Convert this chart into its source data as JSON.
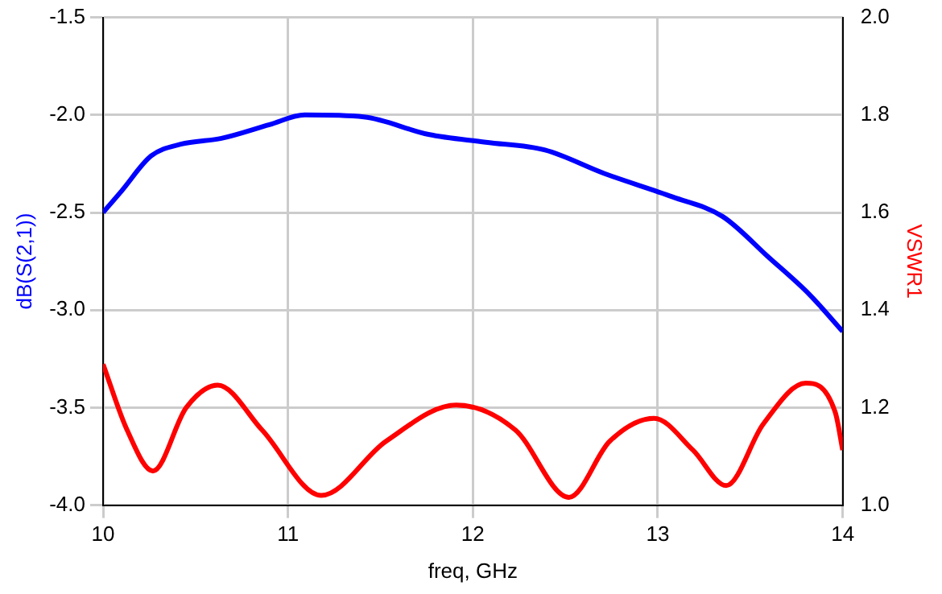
{
  "chart_data": {
    "type": "line",
    "xlabel": "freq, GHz",
    "ylabel": "dB(S(2,1))",
    "y2label": "VSWR1",
    "xlim": [
      10,
      14
    ],
    "xticks": [
      10,
      11,
      12,
      13,
      14
    ],
    "ylim": [
      -4,
      -1.5
    ],
    "yticks": [
      {
        "value": -4,
        "label": "-4.0"
      },
      {
        "value": -3.5,
        "label": "-3.5"
      },
      {
        "value": -3,
        "label": "-3.0"
      },
      {
        "value": -2.5,
        "label": "-2.5"
      },
      {
        "value": -2,
        "label": "-2.0"
      },
      {
        "value": -1.5,
        "label": "-1.5"
      }
    ],
    "y2lim": [
      1,
      2
    ],
    "y2ticks": [
      {
        "value": 1,
        "label": "1.0"
      },
      {
        "value": 1.2,
        "label": "1.2"
      },
      {
        "value": 1.4,
        "label": "1.4"
      },
      {
        "value": 1.6,
        "label": "1.6"
      },
      {
        "value": 1.8,
        "label": "1.8"
      },
      {
        "value": 2,
        "label": "2.0"
      }
    ],
    "grid": true,
    "legend": false,
    "marker": "none",
    "line_style": "solid",
    "series": [
      {
        "color": "#0000ff",
        "x": [
          10,
          10.1,
          10.26,
          10.42,
          10.64,
          10.9,
          11.09,
          11.41,
          11.76,
          12.07,
          12.39,
          12.71,
          13.08,
          13.35,
          13.6,
          13.82,
          14
        ],
        "values": [
          -2.5,
          -2.39,
          -2.21,
          -2.15,
          -2.12,
          -2.05,
          -2.0,
          -2.01,
          -2.1,
          -2.14,
          -2.18,
          -2.3,
          -2.42,
          -2.52,
          -2.73,
          -2.92,
          -3.11
        ]
      },
      {
        "color": "#ff0000",
        "axis": "y2",
        "x": [
          10,
          10.13,
          10.27,
          10.45,
          10.62,
          10.86,
          11.18,
          11.53,
          11.91,
          12.23,
          12.52,
          12.74,
          12.98,
          13.19,
          13.37,
          13.57,
          13.8,
          13.96,
          14
        ],
        "values": [
          1.289,
          1.154,
          1.07,
          1.2,
          1.246,
          1.154,
          1.02,
          1.131,
          1.205,
          1.154,
          1.016,
          1.131,
          1.178,
          1.113,
          1.04,
          1.166,
          1.25,
          1.19,
          1.113
        ]
      }
    ]
  }
}
